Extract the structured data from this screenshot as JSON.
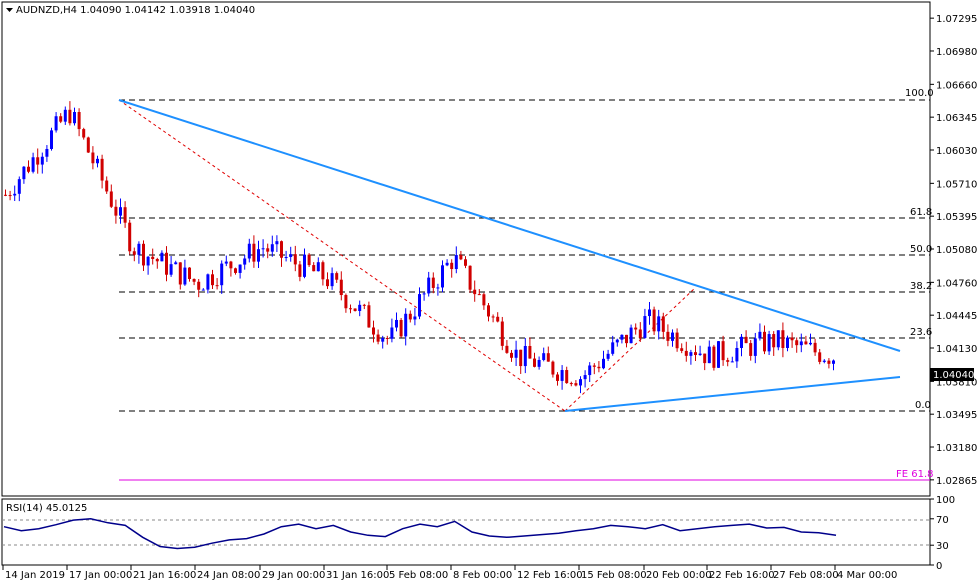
{
  "header": {
    "symbol": "AUDNZD,H4",
    "ohlc": "1.04090 1.04142 1.03918 1.04040"
  },
  "rsi_header": "RSI(14) 45.0125",
  "price_axis": {
    "ticks": [
      "1.07295",
      "1.06980",
      "1.06660",
      "1.06345",
      "1.06030",
      "1.05710",
      "1.05395",
      "1.05080",
      "1.04760",
      "1.04445",
      "1.04130",
      "1.03810",
      "1.03495",
      "1.03180",
      "1.02865"
    ],
    "current_price": "1.04040"
  },
  "rsi_axis": {
    "ticks": [
      "100",
      "70",
      "30",
      "0"
    ]
  },
  "time_axis": [
    "14 Jan 2019",
    "17 Jan 00:00",
    "21 Jan 16:00",
    "24 Jan 08:00",
    "29 Jan 00:00",
    "31 Jan 16:00",
    "5 Feb 08:00",
    "8 Feb 00:00",
    "12 Feb 16:00",
    "15 Feb 08:00",
    "20 Feb 00:00",
    "22 Feb 16:00",
    "27 Feb 08:00",
    "4 Mar 00:00"
  ],
  "fib_labels": [
    "100.0",
    "61.8",
    "50.0",
    "38.2",
    "23.6",
    "0.0"
  ],
  "fe_label": "FE 61.8",
  "colors": {
    "bull": "#0000ff",
    "bear": "#d00000",
    "trendline": "#1e90ff",
    "fib_expansion": "#e000e0",
    "rsi": "#00008b",
    "fib_connector": "#e00000"
  },
  "chart_data": {
    "type": "candlestick",
    "symbol": "AUDNZD",
    "timeframe": "H4",
    "ylim": [
      1.0271,
      1.0745
    ],
    "x_ticks": [
      "14 Jan 2019",
      "17 Jan 00:00",
      "21 Jan 16:00",
      "24 Jan 08:00",
      "29 Jan 00:00",
      "31 Jan 16:00",
      "5 Feb 08:00",
      "8 Feb 00:00",
      "12 Feb 16:00",
      "15 Feb 08:00",
      "20 Feb 00:00",
      "22 Feb 16:00",
      "27 Feb 08:00",
      "4 Mar 00:00"
    ],
    "fibonacci_retracement": [
      {
        "label": "100.0",
        "price": 1.067
      },
      {
        "label": "61.8",
        "price": 1.0552
      },
      {
        "label": "50.0",
        "price": 1.0515
      },
      {
        "label": "38.2",
        "price": 1.0479
      },
      {
        "label": "23.6",
        "price": 1.04335
      },
      {
        "label": "0.0",
        "price": 1.0364
      }
    ],
    "fibonacci_expansion": {
      "label": "FE 61.8",
      "price": 1.0302
    },
    "price_anchors": [
      {
        "time": "14 Jan 2019",
        "price": 1.056
      },
      {
        "time": "17 Jan 00:00",
        "price": 1.064
      },
      {
        "time": "21 Jan 16:00",
        "price": 1.051
      },
      {
        "time": "24 Jan 08:00",
        "price": 1.0475
      },
      {
        "time": "29 Jan 00:00",
        "price": 1.051
      },
      {
        "time": "31 Jan 16:00",
        "price": 1.048
      },
      {
        "time": "5 Feb 08:00",
        "price": 1.042
      },
      {
        "time": "8 Feb 00:00",
        "price": 1.05
      },
      {
        "time": "12 Feb 16:00",
        "price": 1.0405
      },
      {
        "time": "15 Feb 08:00",
        "price": 1.0385
      },
      {
        "time": "20 Feb 00:00",
        "price": 1.044
      },
      {
        "time": "22 Feb 16:00",
        "price": 1.0405
      },
      {
        "time": "27 Feb 08:00",
        "price": 1.042
      },
      {
        "time": "4 Mar 00:00",
        "price": 1.0404
      }
    ],
    "rsi": {
      "period": 14,
      "current": 45.0125,
      "levels": [
        70,
        30
      ],
      "ylim": [
        0,
        100
      ],
      "points": [
        58,
        52,
        55,
        61,
        68,
        70,
        64,
        60,
        42,
        28,
        25,
        27,
        33,
        38,
        40,
        47,
        58,
        62,
        55,
        60,
        50,
        45,
        43,
        55,
        62,
        58,
        66,
        50,
        44,
        42,
        44,
        46,
        48,
        52,
        55,
        60,
        58,
        55,
        61,
        52,
        55,
        58,
        60,
        62,
        56,
        57,
        50,
        49,
        45
      ]
    }
  }
}
